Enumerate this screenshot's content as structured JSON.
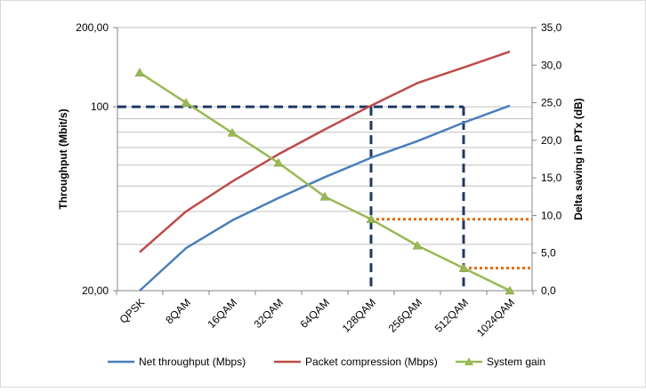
{
  "chart_data": {
    "type": "line",
    "categories": [
      "QPSK",
      "8QAM",
      "16QAM",
      "32QAM",
      "64QAM",
      "128QAM",
      "256QAM",
      "512QAM",
      "1024QAM"
    ],
    "series": [
      {
        "name": "Net throughput (Mbps)",
        "axis": "left",
        "color": "#4a7ebb",
        "marker": "none",
        "values": [
          20,
          29,
          37,
          45,
          54,
          64,
          74,
          87,
          101
        ]
      },
      {
        "name": "Packet compression (Mbps)",
        "axis": "left",
        "color": "#be4b48",
        "marker": "none",
        "values": [
          28,
          40,
          52,
          66,
          82,
          101,
          123,
          141,
          162
        ]
      },
      {
        "name": "System gain",
        "axis": "right",
        "color": "#98b954",
        "marker": "triangle",
        "values": [
          29.0,
          25.0,
          21.0,
          17.0,
          12.5,
          9.5,
          6.0,
          3.0,
          0.0
        ]
      }
    ],
    "y_left": {
      "label": "Throughput (Mbit/s)",
      "scale": "log",
      "range": [
        20,
        200
      ],
      "tick_labels": [
        {
          "value": 20,
          "label": "20,00"
        },
        {
          "value": 100,
          "label": "100"
        },
        {
          "value": 200,
          "label": "200,00"
        }
      ]
    },
    "y_right": {
      "label": "Delta saving in PTx (dB)",
      "range": [
        0,
        35
      ],
      "tick_labels": [
        "0,0",
        "5,0",
        "10,0",
        "15,0",
        "20,0",
        "25,0",
        "30,0",
        "35,0"
      ]
    },
    "reference_lines": {
      "dashed_navy_threshold_value": 100,
      "dashed_navy_categories": [
        "128QAM",
        "512QAM"
      ],
      "dotted_orange": [
        {
          "from_category": "128QAM",
          "value_db": 9.5
        },
        {
          "from_category": "512QAM",
          "value_db": 3.0
        }
      ],
      "colors": {
        "navy": "#1f3864",
        "orange": "#e46c0a"
      }
    },
    "gridlines": true,
    "legend": "bottom"
  }
}
